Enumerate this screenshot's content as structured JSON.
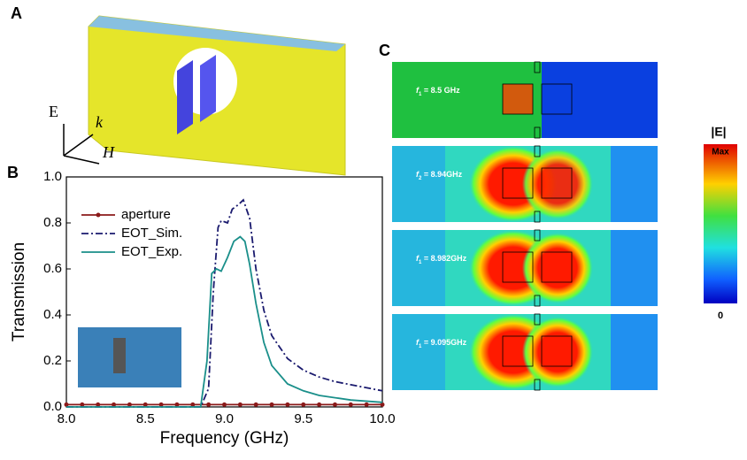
{
  "panel_labels": [
    "A",
    "B",
    "C"
  ],
  "schematic": {
    "axes": [
      "E",
      "k",
      "H"
    ]
  },
  "field_maps": [
    {
      "symbol": "f",
      "sub": "1",
      "label": " = 8.5 GHz"
    },
    {
      "symbol": "f",
      "sub": "2",
      "label": " = 8.94GHz"
    },
    {
      "symbol": "f",
      "sub": "1",
      "label": " = 8.982GHz"
    },
    {
      "symbol": "f",
      "sub": "1",
      "label": " = 9.095GHz"
    }
  ],
  "colorbar": {
    "title": "|E|",
    "max": "Max",
    "min": "0"
  },
  "chart_data": {
    "type": "line",
    "xlabel": "Frequency (GHz)",
    "ylabel": "Transmission",
    "xlim": [
      8.0,
      10.0
    ],
    "ylim": [
      0.0,
      1.0
    ],
    "xticks": [
      {
        "value": 8,
        "label": "8.0"
      },
      {
        "value": 8.5,
        "label": "8.5"
      },
      {
        "value": 9,
        "label": "9.0"
      },
      {
        "value": 9.5,
        "label": "9.5"
      },
      {
        "value": 10,
        "label": "10.0"
      }
    ],
    "yticks": [
      {
        "value": 0,
        "label": "0.0"
      },
      {
        "value": 0.2,
        "label": "0.2"
      },
      {
        "value": 0.4,
        "label": "0.4"
      },
      {
        "value": 0.6,
        "label": "0.6"
      },
      {
        "value": 0.8,
        "label": "0.8"
      },
      {
        "value": 1,
        "label": "1.0"
      }
    ],
    "legend": "upper left",
    "series": [
      {
        "name": "aperture",
        "color": "#8b1a1a",
        "style": "marker",
        "x": [
          8.0,
          8.1,
          8.2,
          8.3,
          8.4,
          8.5,
          8.6,
          8.7,
          8.8,
          8.9,
          9.0,
          9.1,
          9.2,
          9.3,
          9.4,
          9.5,
          9.6,
          9.7,
          9.8,
          9.9,
          10.0
        ],
        "values": [
          0.01,
          0.01,
          0.01,
          0.01,
          0.01,
          0.01,
          0.01,
          0.01,
          0.01,
          0.01,
          0.01,
          0.01,
          0.01,
          0.01,
          0.01,
          0.01,
          0.01,
          0.01,
          0.01,
          0.01,
          0.01
        ]
      },
      {
        "name": "EOT_Sim.",
        "color": "#1a1a6e",
        "style": "dashdot",
        "x": [
          8.0,
          8.85,
          8.9,
          8.93,
          8.96,
          8.98,
          9.02,
          9.05,
          9.09,
          9.12,
          9.16,
          9.2,
          9.25,
          9.3,
          9.4,
          9.5,
          9.6,
          9.7,
          9.85,
          10.0
        ],
        "values": [
          0.0,
          0.0,
          0.08,
          0.5,
          0.78,
          0.81,
          0.8,
          0.86,
          0.88,
          0.9,
          0.82,
          0.6,
          0.42,
          0.31,
          0.21,
          0.16,
          0.13,
          0.11,
          0.09,
          0.07
        ]
      },
      {
        "name": "EOT_Exp.",
        "color": "#1a8f8a",
        "style": "solid",
        "x": [
          8.0,
          8.85,
          8.89,
          8.92,
          8.95,
          8.98,
          9.02,
          9.06,
          9.1,
          9.13,
          9.16,
          9.2,
          9.25,
          9.3,
          9.4,
          9.5,
          9.6,
          9.8,
          10.0
        ],
        "values": [
          0.0,
          0.0,
          0.2,
          0.58,
          0.6,
          0.59,
          0.65,
          0.72,
          0.74,
          0.72,
          0.62,
          0.45,
          0.28,
          0.18,
          0.1,
          0.07,
          0.05,
          0.03,
          0.02
        ]
      }
    ]
  }
}
